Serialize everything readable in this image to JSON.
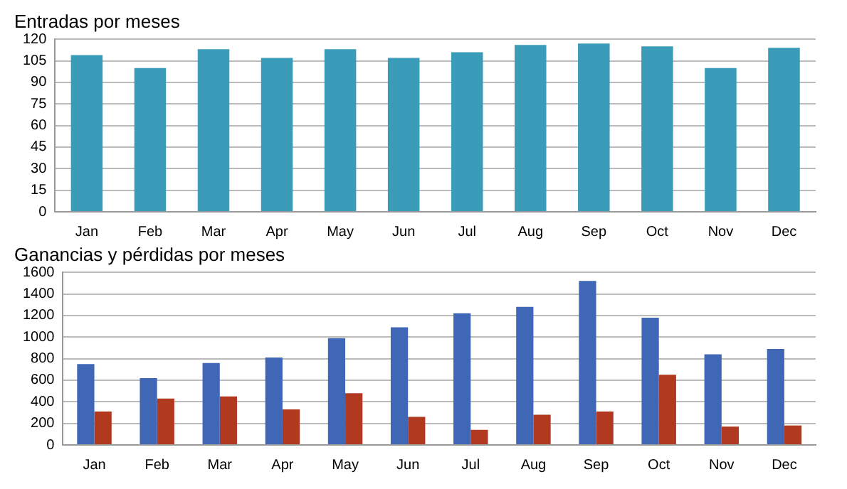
{
  "chart_data": [
    {
      "type": "bar",
      "title": "Entradas por meses",
      "categories": [
        "Jan",
        "Feb",
        "Mar",
        "Apr",
        "May",
        "Jun",
        "Jul",
        "Aug",
        "Sep",
        "Oct",
        "Nov",
        "Dec"
      ],
      "series": [
        {
          "color": "#3a9cb8",
          "values": [
            109,
            100,
            113,
            107,
            113,
            107,
            111,
            116,
            117,
            115,
            100,
            114
          ]
        }
      ],
      "ylim": [
        0,
        120
      ],
      "yticks": [
        0,
        15,
        30,
        45,
        60,
        75,
        90,
        105,
        120
      ],
      "grid": "y",
      "legend": false
    },
    {
      "type": "bar",
      "title": "Ganancias y pérdidas por meses",
      "categories": [
        "Jan",
        "Feb",
        "Mar",
        "Apr",
        "May",
        "Jun",
        "Jul",
        "Aug",
        "Sep",
        "Oct",
        "Nov",
        "Dec"
      ],
      "series": [
        {
          "color": "#3f67b5",
          "values": [
            750,
            620,
            760,
            810,
            990,
            1090,
            1220,
            1280,
            1520,
            1180,
            840,
            890
          ]
        },
        {
          "color": "#b0391f",
          "values": [
            310,
            430,
            450,
            330,
            480,
            260,
            140,
            280,
            310,
            650,
            170,
            180
          ]
        }
      ],
      "ylim": [
        0,
        1600
      ],
      "yticks": [
        0,
        200,
        400,
        600,
        800,
        1000,
        1200,
        1400,
        1600
      ],
      "grid": "y",
      "legend": false
    }
  ]
}
